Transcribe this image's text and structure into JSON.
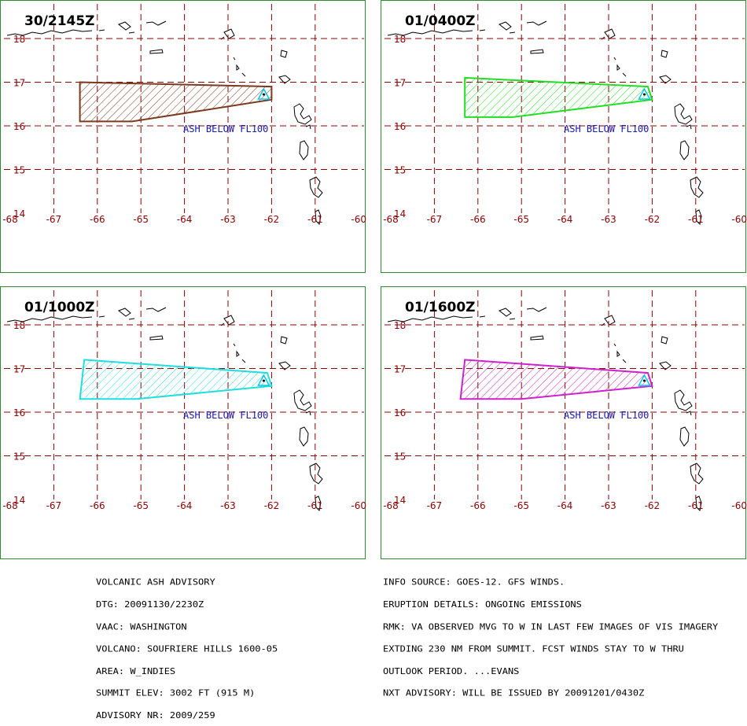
{
  "colors": {
    "grid": "#8b0000",
    "axis_labels": "#8b0000",
    "coast": "#000000",
    "annotation": "#1a1ab0",
    "volcano_marker": "#00c8e6",
    "panel_border": "#2e8b2e"
  },
  "map": {
    "lat_labels": [
      "18",
      "17",
      "16",
      "15",
      "14"
    ],
    "lon_labels": [
      "-68",
      "-67",
      "-66",
      "-65",
      "-64",
      "-63",
      "-62",
      "-61",
      "-60"
    ],
    "annotation_text": "ASH BELOW FL100",
    "volcano_lon": -62.18,
    "volcano_lat": 16.72
  },
  "panels": [
    {
      "title": "30/2145Z",
      "color": "#7a3a1e",
      "polygon": [
        [
          -66.4,
          17.0
        ],
        [
          -62.0,
          16.9
        ],
        [
          -62.0,
          16.6
        ],
        [
          -65.2,
          16.1
        ],
        [
          -66.4,
          16.1
        ]
      ]
    },
    {
      "title": "01/0400Z",
      "color": "#22dd22",
      "polygon": [
        [
          -66.3,
          17.1
        ],
        [
          -62.1,
          16.9
        ],
        [
          -62.0,
          16.6
        ],
        [
          -65.2,
          16.2
        ],
        [
          -66.3,
          16.2
        ]
      ]
    },
    {
      "title": "01/1000Z",
      "color": "#22dddd",
      "polygon": [
        [
          -66.3,
          17.2
        ],
        [
          -62.1,
          16.9
        ],
        [
          -62.0,
          16.6
        ],
        [
          -65.1,
          16.3
        ],
        [
          -66.4,
          16.3
        ]
      ]
    },
    {
      "title": "01/1600Z",
      "color": "#cc22cc",
      "polygon": [
        [
          -66.3,
          17.2
        ],
        [
          -62.1,
          16.9
        ],
        [
          -62.0,
          16.6
        ],
        [
          -65.0,
          16.3
        ],
        [
          -66.4,
          16.3
        ]
      ]
    }
  ],
  "advisory_left": [
    "VOLCANIC ASH ADVISORY",
    "DTG: 20091130/2230Z",
    "VAAC: WASHINGTON",
    "VOLCANO: SOUFRIERE HILLS 1600-05",
    "AREA: W_INDIES",
    "SUMMIT ELEV: 3002 FT (915 M)",
    "ADVISORY NR: 2009/259"
  ],
  "advisory_right": [
    "INFO SOURCE: GOES-12. GFS WINDS.",
    "ERUPTION DETAILS: ONGOING EMISSIONS",
    "RMK: VA OBSERVED MVG TO W IN LAST FEW IMAGES OF VIS IMAGERY",
    "EXTDING 230 NM FROM SUMMIT. FCST WINDS STAY TO W THRU",
    "OUTLOOK PERIOD. ...EVANS",
    "NXT ADVISORY: WILL BE ISSUED BY 20091201/0430Z"
  ]
}
